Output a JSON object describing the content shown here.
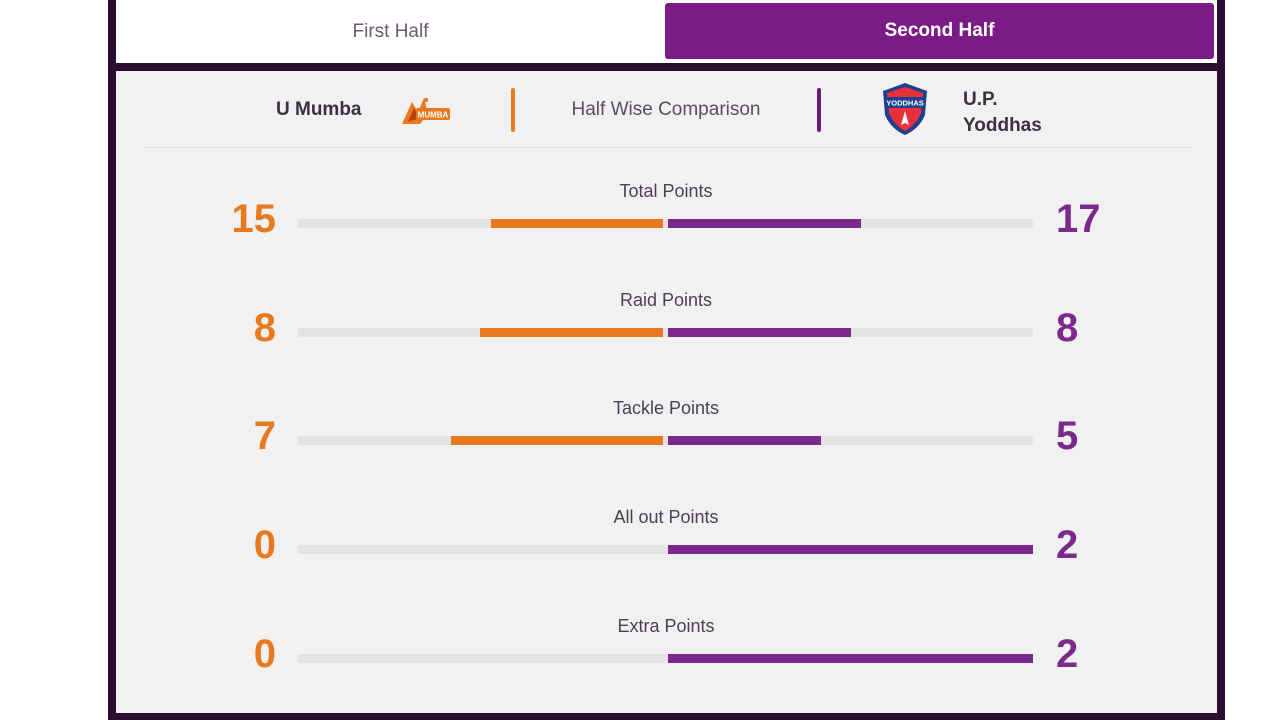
{
  "tabs": [
    {
      "label": "First Half",
      "active": false
    },
    {
      "label": "Second Half",
      "active": true
    }
  ],
  "header": {
    "team_left": "U Mumba",
    "title": "Half Wise Comparison",
    "team_right": "U.P. Yoddhas",
    "logo_left_text": "MUMBA",
    "logo_right_text": "YODDHAS"
  },
  "colors": {
    "team_left": "#e8791e",
    "team_right": "#7b2a8c",
    "active_tab": "#7b1c86"
  },
  "stats": [
    {
      "label": "Total Points",
      "left": "15",
      "right": "17",
      "left_fill": 0.47,
      "right_fill": 0.53
    },
    {
      "label": "Raid Points",
      "left": "8",
      "right": "8",
      "left_fill": 0.5,
      "right_fill": 0.5
    },
    {
      "label": "Tackle Points",
      "left": "7",
      "right": "5",
      "left_fill": 0.58,
      "right_fill": 0.42
    },
    {
      "label": "All out Points",
      "left": "0",
      "right": "2",
      "left_fill": 0.0,
      "right_fill": 1.0
    },
    {
      "label": "Extra Points",
      "left": "0",
      "right": "2",
      "left_fill": 0.0,
      "right_fill": 1.0
    }
  ]
}
